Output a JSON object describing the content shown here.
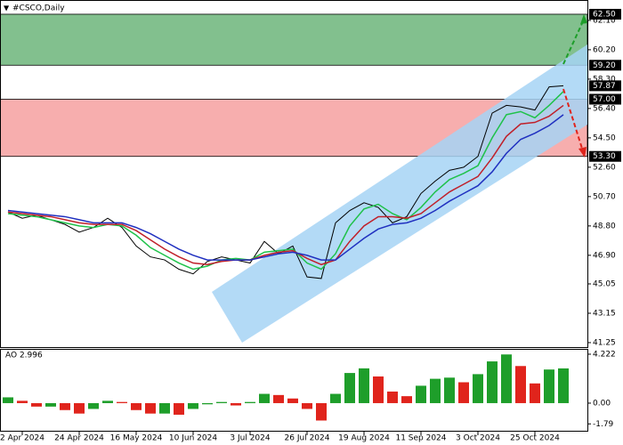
{
  "chart_data": [
    {
      "type": "line",
      "title": "#CSCO,Daily",
      "categories": [
        null,
        "2 Apr 2024",
        null,
        null,
        null,
        "24 Apr 2024",
        null,
        null,
        null,
        "16 May 2024",
        null,
        null,
        null,
        "10 Jun 2024",
        null,
        null,
        null,
        "3 Jul 2024",
        null,
        null,
        null,
        "26 Jul 2024",
        null,
        null,
        null,
        "19 Aug 2024",
        null,
        null,
        null,
        "11 Sep 2024",
        null,
        null,
        null,
        "3 Oct 2024",
        null,
        null,
        null,
        "25 Oct 2024",
        null,
        null
      ],
      "series": [
        {
          "color": "#000000",
          "values": [
            49.7,
            49.3,
            49.5,
            49.2,
            48.9,
            48.4,
            48.7,
            49.3,
            48.7,
            47.5,
            46.8,
            46.6,
            46.0,
            45.7,
            46.5,
            46.8,
            46.6,
            46.4,
            47.8,
            47.0,
            47.5,
            45.5,
            45.4,
            49.0,
            49.8,
            50.3,
            50.0,
            49.0,
            49.4,
            50.9,
            51.7,
            52.4,
            52.6,
            53.3,
            56.1,
            56.6,
            56.5,
            56.3,
            57.8,
            57.87
          ]
        },
        {
          "color": "#1fc24a",
          "values": [
            49.6,
            49.5,
            49.4,
            49.2,
            49.0,
            48.8,
            48.7,
            48.9,
            48.8,
            48.2,
            47.4,
            46.9,
            46.4,
            46.0,
            46.2,
            46.6,
            46.7,
            46.6,
            47.1,
            47.2,
            47.3,
            46.4,
            46.0,
            47.0,
            48.8,
            49.9,
            50.2,
            49.6,
            49.2,
            50.0,
            51.0,
            51.8,
            52.2,
            52.7,
            54.5,
            56.0,
            56.2,
            55.8,
            56.6,
            57.5
          ]
        },
        {
          "color": "#c0202a",
          "values": [
            49.7,
            49.6,
            49.5,
            49.4,
            49.2,
            49.0,
            48.9,
            48.9,
            48.9,
            48.5,
            47.9,
            47.3,
            46.8,
            46.4,
            46.3,
            46.5,
            46.6,
            46.6,
            46.9,
            47.1,
            47.2,
            46.7,
            46.3,
            46.6,
            47.8,
            48.8,
            49.4,
            49.4,
            49.3,
            49.6,
            50.3,
            51.0,
            51.5,
            52.0,
            53.2,
            54.6,
            55.4,
            55.5,
            55.9,
            56.6
          ]
        },
        {
          "color": "#2030c0",
          "values": [
            49.8,
            49.7,
            49.6,
            49.5,
            49.4,
            49.2,
            49.0,
            49.0,
            49.0,
            48.7,
            48.3,
            47.8,
            47.3,
            46.9,
            46.6,
            46.6,
            46.6,
            46.6,
            46.8,
            47.0,
            47.1,
            46.9,
            46.6,
            46.6,
            47.3,
            48.0,
            48.6,
            48.9,
            49.0,
            49.3,
            49.8,
            50.4,
            50.9,
            51.4,
            52.3,
            53.5,
            54.4,
            54.8,
            55.3,
            56.0
          ]
        }
      ],
      "ylim": [
        40.96,
        63.42
      ],
      "yticks": [
        {
          "value": 62.1,
          "label": "62.10"
        },
        {
          "value": 60.2,
          "label": "60.20"
        },
        {
          "value": 58.3,
          "label": "58.30"
        },
        {
          "value": 56.4,
          "label": "56.40"
        },
        {
          "value": 54.5,
          "label": "54.50"
        },
        {
          "value": 52.6,
          "label": "52.60"
        },
        {
          "value": 50.7,
          "label": "50.70"
        },
        {
          "value": 48.8,
          "label": "48.80"
        },
        {
          "value": 46.9,
          "label": "46.90"
        },
        45.05,
        43.15,
        41.25
      ],
      "levels": [
        {
          "value": 62.5,
          "label": "62.50"
        },
        {
          "value": 59.2,
          "label": "59.20"
        },
        {
          "value": 57.87,
          "label": "57.87"
        },
        {
          "value": 57,
          "label": "57.00"
        },
        {
          "value": 53.3,
          "label": "53.30"
        }
      ],
      "zones": [
        {
          "from": 59.2,
          "to": 62.5,
          "color": "#82c08e"
        },
        {
          "from": 53.3,
          "to": 57,
          "color": "#f7aeae"
        }
      ]
    },
    {
      "type": "bar",
      "title": "AO 2.996",
      "values": [
        0.5,
        0.2,
        -0.3,
        -0.3,
        -0.6,
        -0.9,
        -0.5,
        0.2,
        0.1,
        -0.6,
        -0.9,
        -0.9,
        -1.0,
        -0.5,
        -0.1,
        0.1,
        -0.2,
        0.1,
        0.8,
        0.7,
        0.4,
        -0.5,
        -1.5,
        0.8,
        2.6,
        3.0,
        2.3,
        1.0,
        0.6,
        1.5,
        2.1,
        2.2,
        1.8,
        2.5,
        3.6,
        4.2,
        3.2,
        1.7,
        2.9,
        2.996
      ],
      "up_color": "#1e9e2a",
      "down_color": "#e0241c",
      "ylim": [
        -2.46,
        4.68
      ],
      "yticks": [
        4.222,
        {
          "value": 0,
          "label": "0.00"
        },
        -1.79
      ]
    }
  ]
}
